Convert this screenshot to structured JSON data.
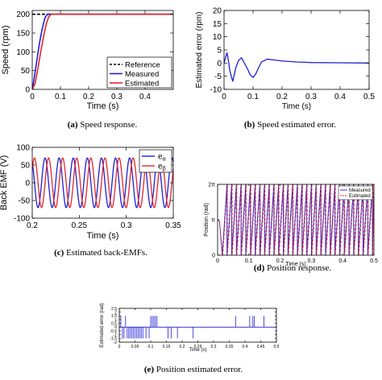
{
  "colors": {
    "blue": "#1f1fd6",
    "red": "#e3262b",
    "black": "#000000"
  },
  "chart_data": [
    {
      "id": "a",
      "type": "line",
      "caption_letter": "(a)",
      "caption_text": "Speed response.",
      "xlabel": "Time (s)",
      "ylabel": "Speed (rpm)",
      "xlim": [
        0,
        0.5
      ],
      "ylim": [
        0,
        210
      ],
      "xticks": [
        0,
        0.1,
        0.2,
        0.3,
        0.4
      ],
      "xtick_labels": [
        "0",
        "0.1",
        "0.2",
        "0.3",
        "0.4"
      ],
      "yticks": [
        0,
        50,
        100,
        150,
        200
      ],
      "ytick_labels": [
        "0",
        "50",
        "100",
        "150",
        "200"
      ],
      "legend": [
        "Reference",
        "Measured",
        "Estimated"
      ],
      "legend_position": "bottom-right",
      "series": [
        {
          "name": "Reference",
          "color": "#000000",
          "dash": "4,2",
          "x": [
            0,
            0.5
          ],
          "y": [
            200,
            200
          ]
        },
        {
          "name": "Measured",
          "color": "#1f1fd6",
          "x": [
            0,
            0.005,
            0.015,
            0.025,
            0.035,
            0.045,
            0.052,
            0.058,
            0.065,
            0.5
          ],
          "y": [
            0,
            20,
            70,
            120,
            160,
            190,
            198,
            201,
            200,
            200
          ]
        },
        {
          "name": "Estimated",
          "color": "#e3262b",
          "x": [
            0,
            0.01,
            0.02,
            0.03,
            0.04,
            0.05,
            0.058,
            0.065,
            0.072,
            0.5
          ],
          "y": [
            0,
            15,
            55,
            100,
            140,
            175,
            192,
            199,
            200,
            200
          ]
        }
      ]
    },
    {
      "id": "b",
      "type": "line",
      "caption_letter": "(b)",
      "caption_text": "Speed estimated error.",
      "xlabel": "Time (s)",
      "ylabel": "Estimated error (rpm)",
      "xlim": [
        0,
        0.5
      ],
      "ylim": [
        -10,
        20
      ],
      "xticks": [
        0,
        0.1,
        0.2,
        0.3,
        0.4,
        0.5
      ],
      "xtick_labels": [
        "0",
        "0.1",
        "0.2",
        "0.3",
        "0.4",
        "0.5"
      ],
      "yticks": [
        -10,
        -5,
        0,
        5,
        10,
        15,
        20
      ],
      "ytick_labels": [
        "-10",
        "-5",
        "0",
        "5",
        "10",
        "15",
        "20"
      ],
      "series": [
        {
          "name": "",
          "color": "#1f1fd6",
          "x": [
            0,
            0.005,
            0.01,
            0.015,
            0.02,
            0.03,
            0.04,
            0.05,
            0.06,
            0.07,
            0.08,
            0.09,
            0.1,
            0.11,
            0.12,
            0.13,
            0.15,
            0.17,
            0.2,
            0.25,
            0.3,
            0.4,
            0.5
          ],
          "y": [
            0,
            2,
            4,
            1,
            -3,
            -7,
            -2,
            1,
            2,
            0,
            -2,
            -4.5,
            -5.5,
            -4,
            -1.5,
            0.5,
            1.5,
            1.2,
            0.8,
            0.4,
            0.2,
            0.1,
            0
          ]
        }
      ]
    },
    {
      "id": "c",
      "type": "line",
      "caption_letter": "(c)",
      "caption_text": "Estimated back-EMFs.",
      "xlabel": "Time (s)",
      "ylabel": "Back EMF (V)",
      "xlim": [
        0.2,
        0.35
      ],
      "ylim": [
        -100,
        100
      ],
      "xticks": [
        0.2,
        0.25,
        0.3,
        0.35
      ],
      "xtick_labels": [
        "0.2",
        "0.25",
        "0.3",
        "0.35"
      ],
      "yticks": [
        -100,
        -50,
        0,
        50,
        100
      ],
      "ytick_labels": [
        "-100",
        "-50",
        "0",
        "50",
        "100"
      ],
      "legend": [
        "e",
        "e"
      ],
      "legend_subscripts": [
        "α",
        "β"
      ],
      "legend_position": "top-right",
      "amplitude": 70,
      "frequency_hz": 66.7,
      "series": [
        {
          "name": "e",
          "subscript": "α",
          "color": "#1f1fd6",
          "phase_deg": 0
        },
        {
          "name": "e",
          "subscript": "β",
          "color": "#e3262b",
          "phase_deg": -90
        }
      ]
    },
    {
      "id": "d",
      "type": "line",
      "caption_letter": "(d)",
      "caption_text": "Position response.",
      "xlabel": "Time (s)",
      "ylabel": "Position (rad)",
      "xlim": [
        0,
        0.5
      ],
      "ylim": [
        0,
        6.2832
      ],
      "xticks": [
        0,
        0.1,
        0.2,
        0.3,
        0.4,
        0.5
      ],
      "xtick_labels": [
        "0",
        "0.1",
        "0.2",
        "0.3",
        "0.4",
        "0.5"
      ],
      "yticks": [
        0,
        3.1416,
        6.2832
      ],
      "ytick_labels": [
        "0",
        "π",
        "2π"
      ],
      "legend": [
        "Measured",
        "Estimated"
      ],
      "legend_position": "top-right",
      "sawtooth_start": 0.015,
      "sawtooth_period": 0.015,
      "series": [
        {
          "name": "Measured",
          "color": "#1f1fd6"
        },
        {
          "name": "Estimated",
          "color": "#e3262b",
          "dash": "3,2"
        }
      ]
    },
    {
      "id": "e",
      "type": "line",
      "caption_letter": "(e)",
      "caption_text": "Position estimated error.",
      "xlabel": "Time (s)",
      "ylabel": "Estimated error (rad)",
      "xlim": [
        0,
        0.5
      ],
      "ylim": [
        -2,
        2.5
      ],
      "xticks": [
        0,
        0.05,
        0.1,
        0.15,
        0.2,
        0.25,
        0.3,
        0.35,
        0.4,
        0.45,
        0.5
      ],
      "xtick_labels": [
        "0",
        "0.05",
        "0.1",
        "0.15",
        "0.2",
        "0.25",
        "0.3",
        "0.35",
        "0.4",
        "0.45",
        "0.5"
      ],
      "yticks": [
        -2,
        -1.5,
        -1,
        -0.5,
        0,
        0.5,
        1,
        1.5,
        2,
        2.5
      ],
      "ytick_labels": [
        "-2",
        "-1.5",
        "-1",
        "-0.5",
        "0",
        "0.5",
        "1",
        "1.5",
        "2",
        "2.5"
      ],
      "spikes_up": [
        0.005,
        0.02,
        0.1,
        0.105,
        0.11,
        0.115,
        0.12,
        0.37,
        0.415,
        0.425,
        0.43,
        0.46
      ],
      "spikes_down": [
        0.01,
        0.015,
        0.025,
        0.03,
        0.035,
        0.04,
        0.045,
        0.05,
        0.055,
        0.06,
        0.065,
        0.07,
        0.075,
        0.085,
        0.095,
        0.155,
        0.165,
        0.185,
        0.235
      ],
      "spike_up_value": 1.5,
      "spike_down_value": -1.5,
      "series": [
        {
          "name": "",
          "color": "#1f1fd6"
        }
      ]
    }
  ]
}
